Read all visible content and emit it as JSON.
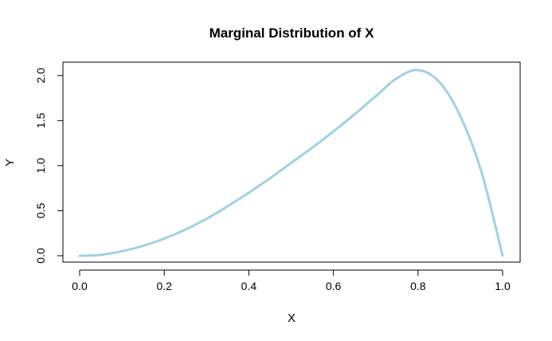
{
  "chart_data": {
    "type": "line",
    "title": "Marginal Distribution of X",
    "xlabel": "X",
    "ylabel": "Y",
    "xlim": [
      0.0,
      1.0
    ],
    "ylim": [
      0.0,
      2.06
    ],
    "x_ticks": [
      "0.0",
      "0.2",
      "0.4",
      "0.6",
      "0.8",
      "1.0"
    ],
    "y_ticks": [
      "0.0",
      "0.5",
      "1.0",
      "1.5",
      "2.0"
    ],
    "grid": false,
    "series": [
      {
        "color": "#a2d0e0",
        "x": [
          0.0,
          0.05,
          0.1,
          0.15,
          0.2,
          0.25,
          0.3,
          0.35,
          0.4,
          0.45,
          0.5,
          0.55,
          0.6,
          0.65,
          0.7,
          0.75,
          0.8,
          0.85,
          0.9,
          0.95,
          1.0
        ],
        "y": [
          0.0,
          0.01,
          0.05,
          0.11,
          0.19,
          0.29,
          0.41,
          0.55,
          0.7,
          0.86,
          1.03,
          1.2,
          1.38,
          1.57,
          1.77,
          1.97,
          2.06,
          1.93,
          1.55,
          0.93,
          0.0
        ]
      }
    ]
  }
}
